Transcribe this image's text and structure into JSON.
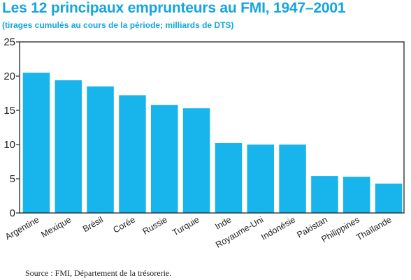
{
  "title": "Les 12 principaux emprunteurs au FMI, 1947–2001",
  "subtitle": "(tirages cumulés au cours de la période; milliards de DTS)",
  "source": "Source : FMI, Département de la trésorerie.",
  "colors": {
    "bar": "#18b4ec",
    "title": "#16a5dd",
    "axis": "#222222"
  },
  "chart_data": {
    "type": "bar",
    "categories": [
      "Argentine",
      "Mexique",
      "Brésil",
      "Corée",
      "Russie",
      "Turquie",
      "Inde",
      "Royaume-Uni",
      "Indonésie",
      "Pakistan",
      "Philippines",
      "Thaïlande"
    ],
    "values": [
      20.5,
      19.4,
      18.5,
      17.2,
      15.8,
      15.3,
      10.2,
      10.0,
      10.0,
      5.4,
      5.3,
      4.3
    ],
    "yticks": [
      0,
      5,
      10,
      15,
      20,
      25
    ],
    "ylim": [
      0,
      25
    ],
    "grid": false,
    "xlabel": "",
    "ylabel": ""
  }
}
